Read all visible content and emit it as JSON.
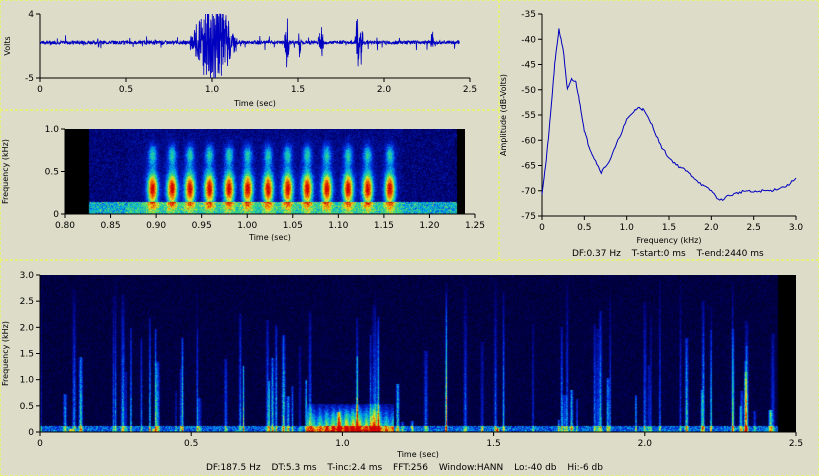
{
  "colors": {
    "background": "#dcdcc8",
    "trace": "#0000c0",
    "border": "#e6f07a"
  },
  "chart_data": [
    {
      "id": "waveform",
      "type": "line",
      "xlabel": "Time (sec)",
      "ylabel": "Volts",
      "xlim": [
        0,
        2.5
      ],
      "ylim": [
        -5,
        4
      ],
      "xticks": [
        "0",
        "0.5",
        "1.0",
        "1.5",
        "2.0",
        "2.5"
      ],
      "yticks": [
        "4",
        "-5"
      ],
      "signal_end": 2.44,
      "bursts": [
        {
          "t": 0.87,
          "dur": 0.28,
          "amp": 3.7
        },
        {
          "t": 1.42,
          "dur": 0.03,
          "amp": -2.5
        },
        {
          "t": 1.5,
          "dur": 0.02,
          "amp": 1.5
        },
        {
          "t": 1.62,
          "dur": 0.03,
          "amp": 1.8
        },
        {
          "t": 1.83,
          "dur": 0.03,
          "amp": 2.5
        },
        {
          "t": 1.86,
          "dur": 0.02,
          "amp": -2
        },
        {
          "t": 2.27,
          "dur": 0.02,
          "amp": 1
        }
      ]
    },
    {
      "id": "zoom-spectrogram",
      "type": "heatmap",
      "xlabel": "Time (sec)",
      "ylabel": "Frequency (kHz)",
      "xlim": [
        0.8,
        1.25
      ],
      "ylim": [
        0,
        1.0
      ],
      "xticks": [
        "0.80",
        "0.85",
        "0.90",
        "0.95",
        "1.00",
        "1.05",
        "1.10",
        "1.15",
        "1.20",
        "1.25"
      ],
      "yticks": [
        "0",
        "0.5",
        "1.0"
      ],
      "data_start": 0.826,
      "data_end": 1.24,
      "pulse_times": [
        0.898,
        0.92,
        0.94,
        0.962,
        0.984,
        1.005,
        1.028,
        1.05,
        1.072,
        1.094,
        1.118,
        1.14,
        1.165
      ],
      "pulse_freq_khz": 0.3
    },
    {
      "id": "spectrum",
      "type": "line",
      "xlabel": "Frequency (kHz)",
      "ylabel": "Amplitude (dB-Volts)",
      "xlim": [
        0,
        3.0
      ],
      "ylim": [
        -75,
        -35
      ],
      "xticks": [
        "0",
        "0.5",
        "1.0",
        "1.5",
        "2.0",
        "2.5",
        "3.0"
      ],
      "yticks": [
        "-35",
        "-40",
        "-45",
        "-50",
        "-55",
        "-60",
        "-65",
        "-70",
        "-75"
      ],
      "x": [
        0,
        0.05,
        0.1,
        0.15,
        0.2,
        0.25,
        0.3,
        0.35,
        0.4,
        0.45,
        0.5,
        0.55,
        0.6,
        0.7,
        0.8,
        0.9,
        1.0,
        1.1,
        1.15,
        1.2,
        1.3,
        1.4,
        1.5,
        1.6,
        1.7,
        1.8,
        1.9,
        2.0,
        2.1,
        2.2,
        2.3,
        2.4,
        2.5,
        2.6,
        2.7,
        2.8,
        2.9,
        3.0
      ],
      "y": [
        -70.5,
        -64,
        -55,
        -45,
        -38,
        -42,
        -50,
        -48,
        -48.5,
        -53,
        -58,
        -61,
        -63,
        -66.3,
        -64,
        -60,
        -56,
        -54,
        -53.5,
        -54,
        -57,
        -61,
        -63.5,
        -65,
        -66,
        -67.5,
        -69,
        -70,
        -72,
        -71,
        -70.5,
        -70,
        -70.3,
        -70,
        -70,
        -69.5,
        -69,
        -67.5
      ]
    },
    {
      "id": "full-spectrogram",
      "type": "heatmap",
      "xlabel": "Time (sec)",
      "ylabel": "Frequency (kHz)",
      "xlim": [
        0,
        2.5
      ],
      "ylim": [
        0,
        3.0
      ],
      "xticks": [
        "0",
        "0.5",
        "1.0",
        "1.5",
        "2.0",
        "2.5"
      ],
      "yticks": [
        "0",
        "0.5",
        "1.0",
        "1.5",
        "2.0",
        "2.5",
        "3.0"
      ],
      "data_end": 2.44,
      "hot_region": {
        "t_start": 0.88,
        "t_end": 1.17,
        "f_max_khz": 0.55
      }
    }
  ],
  "spectrum_footer": {
    "df": "DF:0.37 Hz",
    "tstart": "T-start:0 ms",
    "tend": "T-end:2440 ms"
  },
  "spectrogram_footer": {
    "df": "DF:187.5 Hz",
    "dt": "DT:5.3 ms",
    "tinc": "T-inc:2.4 ms",
    "fft": "FFT:256",
    "window": "Window:HANN",
    "lo": "Lo:-40 db",
    "hi": "Hi:-6 db"
  }
}
